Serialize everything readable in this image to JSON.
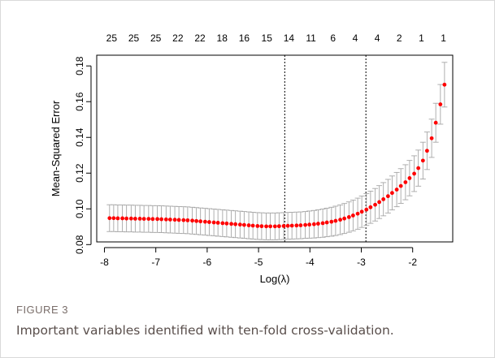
{
  "figure": {
    "label": "FIGURE 3",
    "caption": "Important variables identified with ten-fold cross-validation."
  },
  "chart_data": {
    "type": "scatter",
    "xlabel": "Log(λ)",
    "ylabel": "Mean-Squared Error",
    "xlim": [
      -8.15,
      -1.22
    ],
    "ylim": [
      0.0815,
      0.186
    ],
    "x_ticks": [
      -8,
      -7,
      -6,
      -5,
      -4,
      -3,
      -2
    ],
    "x_tick_labels": [
      "-8",
      "-7",
      "-6",
      "-5",
      "-4",
      "-3",
      "-2"
    ],
    "y_ticks": [
      0.08,
      0.1,
      0.12,
      0.14,
      0.16,
      0.18
    ],
    "y_tick_labels": [
      "0.08",
      "0.10",
      "0.12",
      "0.14",
      "0.16",
      "0.18"
    ],
    "top_axis_label_positions": [
      -7.86,
      -7.43,
      -7.0,
      -6.57,
      -6.14,
      -5.71,
      -5.28,
      -4.84,
      -4.41,
      -3.98,
      -3.55,
      -3.12,
      -2.69,
      -2.26,
      -1.83,
      -1.4
    ],
    "top_axis_labels": [
      "25",
      "25",
      "25",
      "22",
      "22",
      "18",
      "16",
      "15",
      "14",
      "11",
      "6",
      "4",
      "4",
      "2",
      "1",
      "1"
    ],
    "reference_lines": [
      -4.49,
      -2.91
    ],
    "point_color": "#ff0000",
    "errorbar_color": "#a6a6a6",
    "series": [
      {
        "x": [
          -7.9,
          -7.82,
          -7.74,
          -7.65,
          -7.57,
          -7.48,
          -7.4,
          -7.31,
          -7.23,
          -7.14,
          -7.06,
          -6.97,
          -6.89,
          -6.8,
          -6.72,
          -6.63,
          -6.55,
          -6.46,
          -6.38,
          -6.29,
          -6.21,
          -6.13,
          -6.04,
          -5.96,
          -5.87,
          -5.79,
          -5.7,
          -5.62,
          -5.53,
          -5.45,
          -5.36,
          -5.28,
          -5.19,
          -5.11,
          -5.02,
          -4.94,
          -4.85,
          -4.77,
          -4.68,
          -4.6,
          -4.51,
          -4.43,
          -4.35,
          -4.26,
          -4.18,
          -4.09,
          -4.01,
          -3.92,
          -3.84,
          -3.75,
          -3.67,
          -3.58,
          -3.5,
          -3.41,
          -3.33,
          -3.24,
          -3.16,
          -3.07,
          -2.99,
          -2.9,
          -2.82,
          -2.73,
          -2.65,
          -2.57,
          -2.48,
          -2.4,
          -2.31,
          -2.23,
          -2.14,
          -2.06,
          -1.97,
          -1.89,
          -1.8,
          -1.72,
          -1.63,
          -1.55,
          -1.46,
          -1.38
        ],
        "y": [
          0.0948,
          0.0948,
          0.0947,
          0.0947,
          0.0946,
          0.0946,
          0.0945,
          0.0945,
          0.0944,
          0.0944,
          0.0943,
          0.0943,
          0.0942,
          0.0941,
          0.094,
          0.0939,
          0.0938,
          0.0937,
          0.0936,
          0.0934,
          0.0932,
          0.093,
          0.0928,
          0.0926,
          0.0924,
          0.0922,
          0.092,
          0.0918,
          0.0916,
          0.0914,
          0.0912,
          0.091,
          0.0908,
          0.0906,
          0.0904,
          0.0903,
          0.0902,
          0.0902,
          0.0902,
          0.0903,
          0.0904,
          0.0905,
          0.0906,
          0.0907,
          0.0908,
          0.091,
          0.0912,
          0.0914,
          0.0917,
          0.092,
          0.0924,
          0.0928,
          0.0933,
          0.0939,
          0.0946,
          0.0954,
          0.0963,
          0.0973,
          0.0984,
          0.0996,
          0.1009,
          0.1023,
          0.1038,
          0.1054,
          0.1071,
          0.1089,
          0.1108,
          0.1128,
          0.1149,
          0.1172,
          0.1197,
          0.1228,
          0.127,
          0.1325,
          0.1395,
          0.1482,
          0.1585,
          0.1695
        ],
        "err": [
          0.0075,
          0.0075,
          0.0075,
          0.0075,
          0.0075,
          0.0075,
          0.0075,
          0.0075,
          0.0075,
          0.0075,
          0.0075,
          0.0075,
          0.0075,
          0.0075,
          0.0075,
          0.0075,
          0.0075,
          0.0075,
          0.0075,
          0.0075,
          0.0075,
          0.0075,
          0.0075,
          0.0075,
          0.0075,
          0.0075,
          0.0075,
          0.0075,
          0.0075,
          0.0075,
          0.0075,
          0.0075,
          0.0075,
          0.0075,
          0.0075,
          0.0075,
          0.0075,
          0.0075,
          0.0075,
          0.0075,
          0.0075,
          0.0075,
          0.0075,
          0.0075,
          0.0075,
          0.0075,
          0.0076,
          0.0077,
          0.0078,
          0.0079,
          0.008,
          0.0081,
          0.0082,
          0.0083,
          0.0084,
          0.0085,
          0.0086,
          0.0087,
          0.0088,
          0.0089,
          0.009,
          0.0091,
          0.0092,
          0.0093,
          0.0094,
          0.0095,
          0.0096,
          0.0097,
          0.0098,
          0.0099,
          0.01,
          0.0101,
          0.0103,
          0.0105,
          0.0107,
          0.0109,
          0.0111,
          0.0125
        ]
      }
    ]
  }
}
